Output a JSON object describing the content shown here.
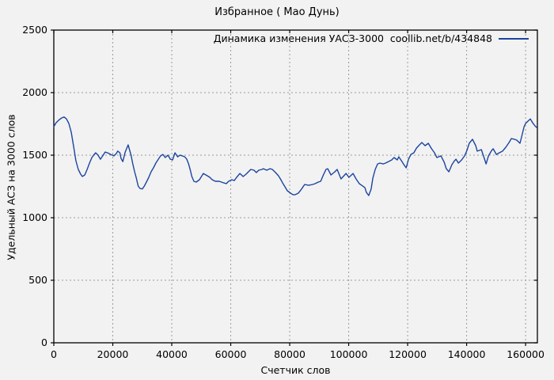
{
  "title": "Избранное ( Мао Дунь)",
  "legend": {
    "label": "Динамика изменения УАСЗ-3000  coollib.net/b/434848"
  },
  "axes": {
    "x_label": "Счетчик слов",
    "y_label": "Удельный АСЗ на 3000 слов",
    "x_ticks": [
      0,
      20000,
      40000,
      60000,
      80000,
      100000,
      120000,
      140000,
      160000
    ],
    "y_ticks": [
      0,
      500,
      1000,
      1500,
      2000,
      2500
    ]
  },
  "colors": {
    "background": "#f2f2f2",
    "frame": "#000000",
    "grid": "#9c9c9c",
    "line": "#1b44a0",
    "text": "#000000"
  },
  "chart_data": {
    "type": "line",
    "title": "Избранное ( Мао Дунь)",
    "xlabel": "Счетчик слов",
    "ylabel": "Удельный АСЗ на 3000 слов",
    "xlim": [
      0,
      164000
    ],
    "ylim": [
      0,
      2500
    ],
    "grid": true,
    "legend_position": "top-right",
    "series": [
      {
        "name": "Динамика изменения УАСЗ-3000  coollib.net/b/434848",
        "color": "#1b44a0",
        "x": [
          0,
          800,
          1900,
          2700,
          3500,
          4300,
          5100,
          5900,
          6700,
          7500,
          8300,
          9100,
          9700,
          10500,
          11300,
          12100,
          12900,
          13700,
          14200,
          15000,
          15800,
          16600,
          17400,
          18200,
          19300,
          20400,
          21200,
          21700,
          22400,
          22800,
          23400,
          24200,
          25200,
          26200,
          26800,
          27400,
          28000,
          28600,
          29200,
          30000,
          30700,
          31400,
          32200,
          33000,
          33800,
          34600,
          35300,
          36200,
          37000,
          37800,
          38700,
          39500,
          40300,
          41100,
          42000,
          42800,
          43600,
          44400,
          45100,
          45700,
          46300,
          46800,
          47500,
          48300,
          49400,
          50700,
          52100,
          52900,
          53700,
          54800,
          56100,
          57700,
          58500,
          59300,
          60400,
          61200,
          62000,
          63100,
          64200,
          65200,
          66000,
          66800,
          67900,
          68700,
          69500,
          70600,
          71100,
          72200,
          73300,
          74100,
          75200,
          76200,
          77000,
          77600,
          78400,
          79200,
          80300,
          81100,
          81900,
          82900,
          83800,
          85100,
          86400,
          87800,
          88600,
          89700,
          90500,
          91300,
          92300,
          92900,
          94000,
          95300,
          96100,
          97400,
          99100,
          100100,
          101500,
          102500,
          103600,
          104400,
          105500,
          106000,
          106800,
          107600,
          108200,
          109000,
          109800,
          110600,
          111700,
          112500,
          113500,
          114600,
          115400,
          116500,
          117000,
          117900,
          118900,
          119500,
          120300,
          121100,
          122100,
          123000,
          124000,
          124800,
          125900,
          127000,
          128100,
          129100,
          129900,
          131300,
          132400,
          133100,
          134000,
          135000,
          135900,
          136400,
          137200,
          138300,
          139300,
          140100,
          140900,
          142000,
          143100,
          143600,
          145000,
          146000,
          146600,
          147400,
          148500,
          149000,
          150100,
          151100,
          152200,
          153300,
          154400,
          155200,
          156200,
          157000,
          158100,
          158700,
          159500,
          160000,
          160800,
          161600,
          162400,
          163200,
          163700
        ],
        "y": [
          1728,
          1760,
          1785,
          1798,
          1805,
          1790,
          1753,
          1684,
          1570,
          1456,
          1386,
          1348,
          1330,
          1342,
          1386,
          1437,
          1481,
          1506,
          1519,
          1500,
          1468,
          1494,
          1525,
          1519,
          1506,
          1494,
          1513,
          1532,
          1519,
          1475,
          1449,
          1525,
          1582,
          1500,
          1430,
          1367,
          1316,
          1253,
          1234,
          1230,
          1253,
          1285,
          1323,
          1367,
          1399,
          1437,
          1462,
          1494,
          1506,
          1481,
          1500,
          1468,
          1462,
          1519,
          1487,
          1500,
          1494,
          1487,
          1468,
          1430,
          1380,
          1329,
          1291,
          1285,
          1304,
          1354,
          1335,
          1323,
          1304,
          1291,
          1291,
          1278,
          1272,
          1291,
          1304,
          1297,
          1323,
          1354,
          1329,
          1348,
          1367,
          1386,
          1380,
          1361,
          1380,
          1386,
          1392,
          1380,
          1392,
          1386,
          1361,
          1335,
          1304,
          1278,
          1247,
          1215,
          1196,
          1184,
          1184,
          1196,
          1222,
          1266,
          1259,
          1266,
          1272,
          1285,
          1291,
          1335,
          1386,
          1392,
          1342,
          1367,
          1386,
          1310,
          1354,
          1323,
          1354,
          1310,
          1272,
          1259,
          1240,
          1203,
          1177,
          1228,
          1316,
          1386,
          1430,
          1437,
          1430,
          1437,
          1449,
          1462,
          1481,
          1462,
          1487,
          1456,
          1418,
          1399,
          1468,
          1506,
          1519,
          1557,
          1582,
          1601,
          1576,
          1595,
          1551,
          1519,
          1481,
          1494,
          1443,
          1392,
          1367,
          1424,
          1456,
          1468,
          1437,
          1462,
          1494,
          1538,
          1595,
          1627,
          1576,
          1532,
          1544,
          1475,
          1430,
          1494,
          1538,
          1551,
          1506,
          1519,
          1532,
          1563,
          1601,
          1633,
          1627,
          1620,
          1595,
          1652,
          1728,
          1753,
          1772,
          1790,
          1759,
          1734,
          1722
        ]
      }
    ]
  }
}
